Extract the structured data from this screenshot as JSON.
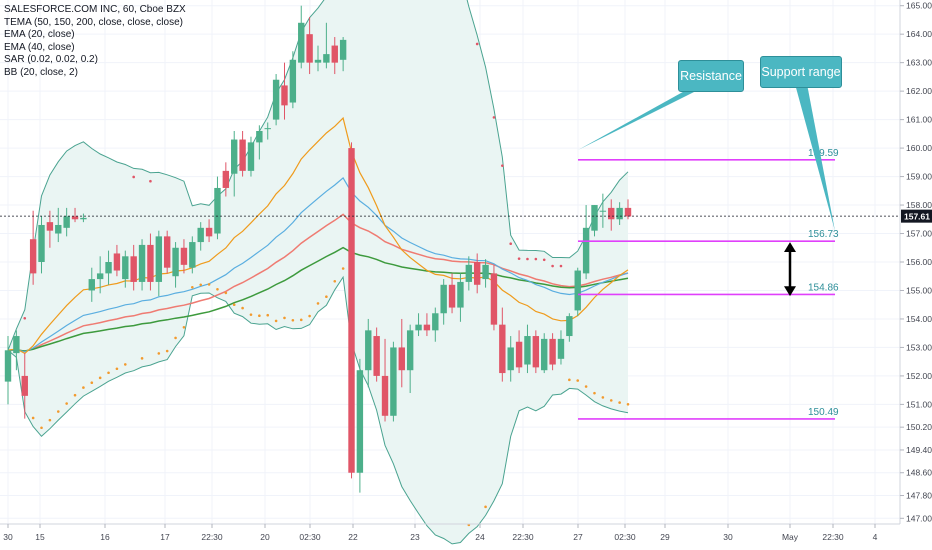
{
  "legend": {
    "title": "SALESFORCE.COM INC, 60, Cboe BZX",
    "lines": [
      "TEMA (50, 150, 200, close, close, close)",
      "EMA (20, close)",
      "EMA (40, close)",
      "SAR (0.02, 0.02, 0.2)",
      "BB (20, close, 2)"
    ]
  },
  "callouts": {
    "resistance": "Resistance",
    "support": "Support range"
  },
  "colors": {
    "up": "#4caf8a",
    "down": "#e05567",
    "ema20": "#ef9b1c",
    "ema40": "#5aaee0",
    "tema_red": "#ef7b72",
    "tema_green": "#3d9a3d",
    "bb": "#4aa390",
    "bb_fill": "#eaf5f3",
    "sar": "#f29a2e",
    "sar_dn": "#e05567",
    "sar_up": "#3d8be0",
    "level": "#e040fb",
    "current": "#131722"
  },
  "current_price": "157.61",
  "chart_data": {
    "type": "candlestick",
    "ylim": [
      146.8,
      165.2
    ],
    "y_ticks": [
      "165.00",
      "164.00",
      "163.00",
      "162.00",
      "161.00",
      "160.00",
      "159.00",
      "158.00",
      "157.00",
      "156.00",
      "155.00",
      "154.00",
      "153.00",
      "152.00",
      "151.00",
      "150.20",
      "149.40",
      "148.60",
      "147.80",
      "147.00"
    ],
    "x_tick_labels": [
      "30",
      "15",
      "16",
      "17",
      "22:30",
      "20",
      "02:30",
      "22",
      "23",
      "24",
      "22:30",
      "27",
      "02:30",
      "29",
      "30",
      "May",
      "22:30",
      "4"
    ],
    "levels": [
      {
        "label": "159.59",
        "value": 159.59
      },
      {
        "label": "156.73",
        "value": 156.73
      },
      {
        "label": "154.86",
        "value": 154.86
      },
      {
        "label": "150.49",
        "value": 150.49
      }
    ],
    "candles": [
      {
        "o": 151.8,
        "h": 153.4,
        "l": 151.0,
        "c": 152.9
      },
      {
        "o": 152.8,
        "h": 153.6,
        "l": 152.2,
        "c": 153.4
      },
      {
        "o": 152.0,
        "h": 152.8,
        "l": 150.5,
        "c": 151.3
      },
      {
        "o": 156.8,
        "h": 157.8,
        "l": 155.2,
        "c": 155.6
      },
      {
        "o": 156.0,
        "h": 157.6,
        "l": 155.6,
        "c": 157.3
      },
      {
        "o": 157.4,
        "h": 157.8,
        "l": 156.5,
        "c": 157.1
      },
      {
        "o": 157.0,
        "h": 157.9,
        "l": 156.7,
        "c": 157.3
      },
      {
        "o": 157.2,
        "h": 157.9,
        "l": 156.9,
        "c": 157.6
      },
      {
        "o": 157.6,
        "h": 157.9,
        "l": 157.4,
        "c": 157.5
      },
      {
        "o": 157.5,
        "h": 157.7,
        "l": 157.4,
        "c": 157.55
      },
      {
        "o": 155.0,
        "h": 155.8,
        "l": 154.6,
        "c": 155.4
      },
      {
        "o": 155.4,
        "h": 156.2,
        "l": 154.9,
        "c": 155.6
      },
      {
        "o": 155.6,
        "h": 156.4,
        "l": 155.2,
        "c": 156.0
      },
      {
        "o": 156.3,
        "h": 156.6,
        "l": 155.5,
        "c": 155.7
      },
      {
        "o": 155.4,
        "h": 156.4,
        "l": 155.1,
        "c": 156.2
      },
      {
        "o": 156.2,
        "h": 156.6,
        "l": 155.0,
        "c": 155.3
      },
      {
        "o": 155.3,
        "h": 156.8,
        "l": 155.0,
        "c": 156.6
      },
      {
        "o": 156.6,
        "h": 157.0,
        "l": 155.0,
        "c": 155.3
      },
      {
        "o": 155.3,
        "h": 157.1,
        "l": 154.8,
        "c": 156.9
      },
      {
        "o": 156.9,
        "h": 157.1,
        "l": 155.6,
        "c": 155.8
      },
      {
        "o": 155.5,
        "h": 156.7,
        "l": 155.1,
        "c": 156.5
      },
      {
        "o": 156.5,
        "h": 156.8,
        "l": 155.6,
        "c": 155.9
      },
      {
        "o": 155.8,
        "h": 156.9,
        "l": 155.6,
        "c": 156.7
      },
      {
        "o": 156.7,
        "h": 157.4,
        "l": 156.4,
        "c": 157.2
      },
      {
        "o": 157.2,
        "h": 157.5,
        "l": 156.7,
        "c": 156.9
      },
      {
        "o": 157.0,
        "h": 159.0,
        "l": 156.8,
        "c": 158.6
      },
      {
        "o": 159.2,
        "h": 159.5,
        "l": 158.3,
        "c": 158.6
      },
      {
        "o": 159.1,
        "h": 160.6,
        "l": 158.3,
        "c": 160.3
      },
      {
        "o": 160.3,
        "h": 160.6,
        "l": 159.0,
        "c": 159.2
      },
      {
        "o": 159.2,
        "h": 160.4,
        "l": 159.0,
        "c": 160.2
      },
      {
        "o": 160.2,
        "h": 160.8,
        "l": 159.6,
        "c": 160.6
      },
      {
        "o": 160.7,
        "h": 160.9,
        "l": 160.3,
        "c": 160.7
      },
      {
        "o": 161.0,
        "h": 162.6,
        "l": 160.8,
        "c": 162.4
      },
      {
        "o": 162.2,
        "h": 163.0,
        "l": 161.0,
        "c": 161.5
      },
      {
        "o": 161.6,
        "h": 163.4,
        "l": 161.4,
        "c": 163.1
      },
      {
        "o": 163.0,
        "h": 165.0,
        "l": 162.8,
        "c": 164.4
      },
      {
        "o": 164.0,
        "h": 164.6,
        "l": 162.6,
        "c": 163.0
      },
      {
        "o": 163.0,
        "h": 163.6,
        "l": 162.7,
        "c": 163.1
      },
      {
        "o": 163.0,
        "h": 164.4,
        "l": 162.8,
        "c": 163.3
      },
      {
        "o": 163.6,
        "h": 163.9,
        "l": 162.6,
        "c": 163.0
      },
      {
        "o": 163.1,
        "h": 163.9,
        "l": 162.7,
        "c": 163.8
      },
      {
        "o": 160.0,
        "h": 160.2,
        "l": 148.4,
        "c": 148.6
      },
      {
        "o": 148.6,
        "h": 152.6,
        "l": 147.9,
        "c": 152.2
      },
      {
        "o": 152.2,
        "h": 154.0,
        "l": 151.6,
        "c": 153.6
      },
      {
        "o": 153.4,
        "h": 153.7,
        "l": 151.8,
        "c": 152.0
      },
      {
        "o": 152.0,
        "h": 153.3,
        "l": 150.4,
        "c": 150.6
      },
      {
        "o": 150.6,
        "h": 153.2,
        "l": 150.4,
        "c": 153.0
      },
      {
        "o": 153.0,
        "h": 154.0,
        "l": 151.6,
        "c": 152.2
      },
      {
        "o": 152.2,
        "h": 153.8,
        "l": 151.4,
        "c": 153.6
      },
      {
        "o": 153.6,
        "h": 154.2,
        "l": 153.4,
        "c": 153.8
      },
      {
        "o": 153.8,
        "h": 154.2,
        "l": 153.4,
        "c": 153.6
      },
      {
        "o": 153.6,
        "h": 154.4,
        "l": 153.2,
        "c": 154.2
      },
      {
        "o": 154.2,
        "h": 155.4,
        "l": 153.8,
        "c": 155.2
      },
      {
        "o": 155.2,
        "h": 155.6,
        "l": 154.2,
        "c": 154.4
      },
      {
        "o": 154.4,
        "h": 155.6,
        "l": 153.9,
        "c": 155.3
      },
      {
        "o": 155.3,
        "h": 156.2,
        "l": 155.0,
        "c": 155.9
      },
      {
        "o": 156.0,
        "h": 156.3,
        "l": 154.9,
        "c": 155.2
      },
      {
        "o": 155.4,
        "h": 156.1,
        "l": 155.1,
        "c": 155.9
      },
      {
        "o": 155.6,
        "h": 155.9,
        "l": 153.6,
        "c": 153.8
      },
      {
        "o": 153.8,
        "h": 154.4,
        "l": 151.8,
        "c": 152.1
      },
      {
        "o": 152.2,
        "h": 153.4,
        "l": 151.8,
        "c": 153.0
      },
      {
        "o": 153.2,
        "h": 153.6,
        "l": 152.1,
        "c": 152.3
      },
      {
        "o": 152.4,
        "h": 153.8,
        "l": 152.1,
        "c": 153.4
      },
      {
        "o": 153.4,
        "h": 153.6,
        "l": 152.1,
        "c": 152.3
      },
      {
        "o": 152.2,
        "h": 153.5,
        "l": 152.1,
        "c": 153.3
      },
      {
        "o": 153.3,
        "h": 153.5,
        "l": 152.2,
        "c": 152.4
      },
      {
        "o": 152.6,
        "h": 153.6,
        "l": 152.4,
        "c": 153.3
      },
      {
        "o": 153.4,
        "h": 154.2,
        "l": 153.2,
        "c": 154.1
      },
      {
        "o": 154.3,
        "h": 155.8,
        "l": 154.1,
        "c": 155.7
      },
      {
        "o": 155.6,
        "h": 158.0,
        "l": 155.4,
        "c": 157.2
      },
      {
        "o": 157.1,
        "h": 158.0,
        "l": 156.9,
        "c": 158.0
      },
      {
        "o": 157.8,
        "h": 158.4,
        "l": 157.2,
        "c": 157.8
      },
      {
        "o": 157.9,
        "h": 158.2,
        "l": 157.1,
        "c": 157.5
      },
      {
        "o": 157.5,
        "h": 158.1,
        "l": 157.3,
        "c": 157.9
      },
      {
        "o": 157.9,
        "h": 158.2,
        "l": 157.5,
        "c": 157.6
      }
    ]
  }
}
